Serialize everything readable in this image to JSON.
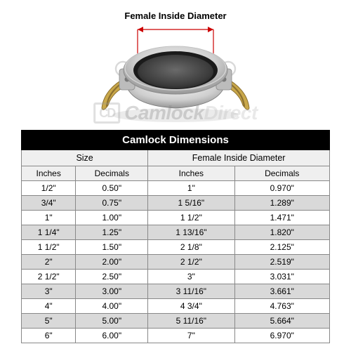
{
  "diagram": {
    "label": "Female Inside Diameter",
    "arrow_color": "#cc0000",
    "coupler_body_color": "#cfcfcf",
    "coupler_body_dark": "#8a8a8a",
    "coupler_bore_color": "#3c3c3c",
    "gasket_color": "#1b1b1b",
    "lever_color": "#c9a84a",
    "lever_dark": "#8c7030",
    "ring_color": "#d9d9d9"
  },
  "watermark": {
    "logo": "CD",
    "text_bold": "Camlock",
    "text_light": "Direct"
  },
  "table": {
    "title": "Camlock Dimensions",
    "group_headers": [
      "Size",
      "Female Inside Diameter"
    ],
    "columns": [
      "Inches",
      "Decimals",
      "Inches",
      "Decimals"
    ],
    "rows": [
      [
        "1/2\"",
        "0.50\"",
        "1\"",
        "0.970\""
      ],
      [
        "3/4\"",
        "0.75\"",
        "1 5/16\"",
        "1.289\""
      ],
      [
        "1\"",
        "1.00\"",
        "1 1/2\"",
        "1.471\""
      ],
      [
        "1 1/4\"",
        "1.25\"",
        "1 13/16\"",
        "1.820\""
      ],
      [
        "1 1/2\"",
        "1.50\"",
        "2 1/8\"",
        "2.125\""
      ],
      [
        "2\"",
        "2.00\"",
        "2 1/2\"",
        "2.519\""
      ],
      [
        "2 1/2\"",
        "2.50\"",
        "3\"",
        "3.031\""
      ],
      [
        "3\"",
        "3.00\"",
        "3 11/16\"",
        "3.661\""
      ],
      [
        "4\"",
        "4.00\"",
        "4 3/4\"",
        "4.763\""
      ],
      [
        "5\"",
        "5.00\"",
        "5 11/16\"",
        "5.664\""
      ],
      [
        "6\"",
        "6.00\"",
        "7\"",
        "6.970\""
      ]
    ],
    "header_bg": "#000000",
    "header_fg": "#ffffff",
    "subheader_bg": "#efefef",
    "row_alt_bg": "#d9d9d9",
    "border_color": "#888888"
  }
}
